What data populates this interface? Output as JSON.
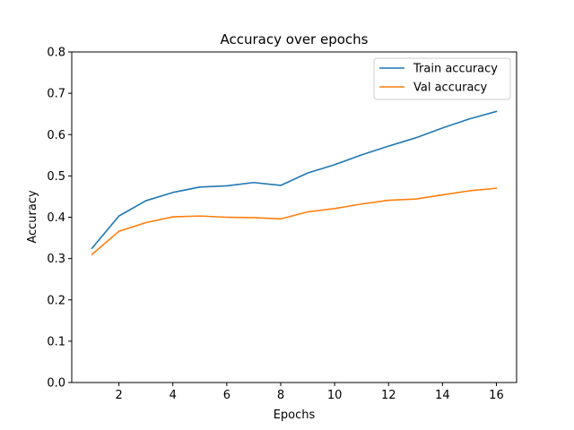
{
  "chart_data": {
    "type": "line",
    "title": "Accuracy over epochs",
    "xlabel": "Epochs",
    "ylabel": "Accuracy",
    "xlim": [
      0.25,
      16.75
    ],
    "ylim": [
      0,
      0.8
    ],
    "xticks": [
      2,
      4,
      6,
      8,
      10,
      12,
      14,
      16
    ],
    "yticks": [
      0.0,
      0.1,
      0.2,
      0.3,
      0.4,
      0.5,
      0.6,
      0.7,
      0.8
    ],
    "ytick_labels": [
      "0.0",
      "0.1",
      "0.2",
      "0.3",
      "0.4",
      "0.5",
      "0.6",
      "0.7",
      "0.8"
    ],
    "grid": false,
    "legend": "top-right",
    "x": [
      1,
      2,
      3,
      4,
      5,
      6,
      7,
      8,
      9,
      10,
      11,
      12,
      13,
      14,
      15,
      16
    ],
    "series": [
      {
        "name": "Train accuracy",
        "color": "#1f77b4",
        "values": [
          0.325,
          0.403,
          0.44,
          0.46,
          0.473,
          0.476,
          0.484,
          0.477,
          0.507,
          0.527,
          0.551,
          0.572,
          0.592,
          0.616,
          0.638,
          0.656
        ]
      },
      {
        "name": "Val accuracy",
        "color": "#ff7f0e",
        "values": [
          0.31,
          0.366,
          0.387,
          0.401,
          0.403,
          0.4,
          0.399,
          0.396,
          0.413,
          0.421,
          0.432,
          0.441,
          0.444,
          0.454,
          0.464,
          0.47
        ]
      }
    ]
  }
}
